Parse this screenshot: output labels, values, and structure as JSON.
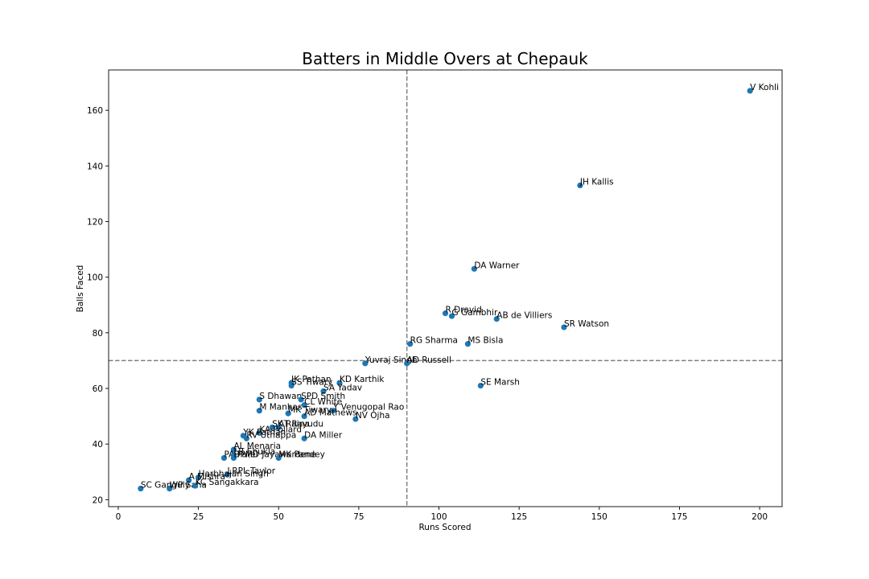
{
  "chart_data": {
    "type": "scatter",
    "title": "Batters in Middle Overs at Chepauk",
    "xlabel": "Runs Scored",
    "ylabel": "Balls Faced",
    "xlim": [
      -3,
      207
    ],
    "ylim": [
      17.5,
      174.5
    ],
    "xticks": [
      0,
      25,
      50,
      75,
      100,
      125,
      150,
      175,
      200
    ],
    "yticks": [
      20,
      40,
      60,
      80,
      100,
      120,
      140,
      160
    ],
    "vline_x": 90,
    "hline_y": 70,
    "grid": false,
    "color": "#1f77b4",
    "points": [
      {
        "label": "V Kohli",
        "x": 197,
        "y": 167
      },
      {
        "label": "JH Kallis",
        "x": 144,
        "y": 133
      },
      {
        "label": "DA Warner",
        "x": 111,
        "y": 103
      },
      {
        "label": "R Dravid",
        "x": 102,
        "y": 87
      },
      {
        "label": "G Gambhir",
        "x": 104,
        "y": 86
      },
      {
        "label": "AB de Villiers",
        "x": 118,
        "y": 85
      },
      {
        "label": "SR Watson",
        "x": 139,
        "y": 82
      },
      {
        "label": "RG Sharma",
        "x": 91,
        "y": 76
      },
      {
        "label": "MS Bisla",
        "x": 109,
        "y": 76
      },
      {
        "label": "Yuvraj Singh",
        "x": 77,
        "y": 69
      },
      {
        "label": "AD Russell",
        "x": 90,
        "y": 69
      },
      {
        "label": "SE Marsh",
        "x": 113,
        "y": 61
      },
      {
        "label": "IK Pathan",
        "x": 54,
        "y": 62
      },
      {
        "label": "KD Karthik",
        "x": 69,
        "y": 62
      },
      {
        "label": "SS Tiwary",
        "x": 54,
        "y": 61
      },
      {
        "label": "SA Yadav",
        "x": 64,
        "y": 59
      },
      {
        "label": "S Dhawan",
        "x": 44,
        "y": 56
      },
      {
        "label": "SPD Smith",
        "x": 57,
        "y": 56
      },
      {
        "label": "CL White",
        "x": 58,
        "y": 54
      },
      {
        "label": "M Manhas",
        "x": 44,
        "y": 52
      },
      {
        "label": "MK Tiwary",
        "x": 53,
        "y": 51
      },
      {
        "label": "Y Venugopal Rao",
        "x": 67,
        "y": 52
      },
      {
        "label": "AD Mathews",
        "x": 58,
        "y": 50
      },
      {
        "label": "NV Ojha",
        "x": 74,
        "y": 49
      },
      {
        "label": "SK Raina",
        "x": 48,
        "y": 46
      },
      {
        "label": "AT Rayudu",
        "x": 50,
        "y": 46
      },
      {
        "label": "KA Pollard",
        "x": 44,
        "y": 44
      },
      {
        "label": "YK Pathan",
        "x": 39,
        "y": 43
      },
      {
        "label": "RV Uthappa",
        "x": 40,
        "y": 42
      },
      {
        "label": "DA Miller",
        "x": 58,
        "y": 42
      },
      {
        "label": "AL Menaria",
        "x": 36,
        "y": 38
      },
      {
        "label": "PA Patel",
        "x": 33,
        "y": 35
      },
      {
        "label": "LR Shukla",
        "x": 36,
        "y": 36
      },
      {
        "label": "DPMD Jayawardene",
        "x": 36,
        "y": 35
      },
      {
        "label": "MK Pandey",
        "x": 50,
        "y": 35
      },
      {
        "label": "LRPL Taylor",
        "x": 34,
        "y": 29
      },
      {
        "label": "Harbhajan Singh",
        "x": 25,
        "y": 28
      },
      {
        "label": "A Mishra",
        "x": 22,
        "y": 27
      },
      {
        "label": "WP Saha",
        "x": 16,
        "y": 24
      },
      {
        "label": "KC Sangakkara",
        "x": 24,
        "y": 25
      },
      {
        "label": "SC Ganguly",
        "x": 7,
        "y": 24
      }
    ]
  }
}
